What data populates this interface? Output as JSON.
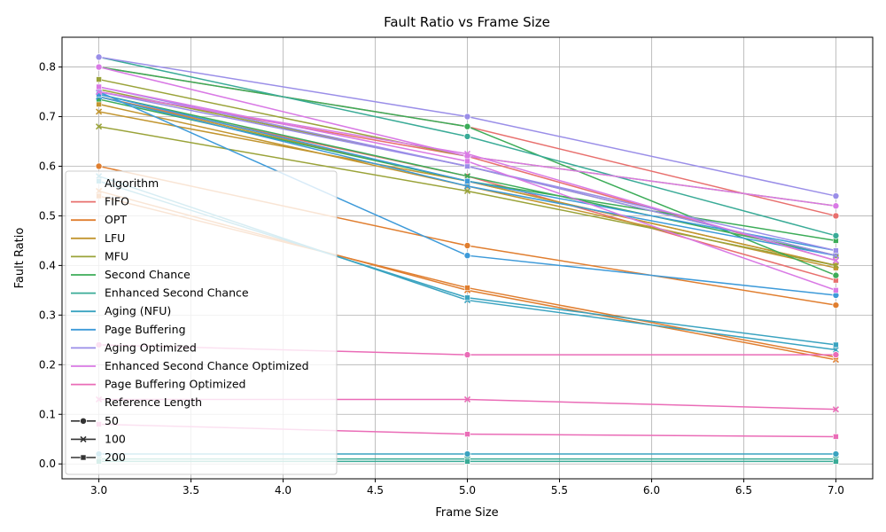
{
  "chart_data": {
    "type": "line",
    "title": "Fault Ratio vs Frame Size",
    "xlabel": "Frame Size",
    "ylabel": "Fault Ratio",
    "x": [
      3,
      5,
      7
    ],
    "xlim": [
      2.8,
      7.2
    ],
    "ylim": [
      -0.03,
      0.86
    ],
    "xticks": [
      "3.0",
      "3.5",
      "4.0",
      "4.5",
      "5.0",
      "5.5",
      "6.0",
      "6.5",
      "7.0"
    ],
    "yticks": [
      "0.0",
      "0.1",
      "0.2",
      "0.3",
      "0.4",
      "0.5",
      "0.6",
      "0.7",
      "0.8"
    ],
    "grid": true,
    "legend_position": "lower-left",
    "legend_hue_title": "Algorithm",
    "legend_style_title": "Reference Length",
    "styles": [
      {
        "label": "50",
        "marker": "circle"
      },
      {
        "label": "100",
        "marker": "x"
      },
      {
        "label": "200",
        "marker": "square"
      }
    ],
    "algorithms": [
      {
        "name": "FIFO",
        "color": "#e8706e",
        "values": {
          "50": [
            0.8,
            0.68,
            0.5
          ],
          "100": [
            0.75,
            0.62,
            0.41
          ],
          "200": [
            0.74,
            0.58,
            0.37
          ]
        }
      },
      {
        "name": "OPT",
        "color": "#e07e2f",
        "values": {
          "50": [
            0.6,
            0.44,
            0.32
          ],
          "100": [
            0.55,
            0.35,
            0.21
          ],
          "200": [
            0.54,
            0.355,
            0.215
          ]
        }
      },
      {
        "name": "LFU",
        "color": "#c2952f",
        "values": {
          "50": [
            0.74,
            0.57,
            0.4
          ],
          "100": [
            0.71,
            0.57,
            0.4
          ],
          "200": [
            0.725,
            0.56,
            0.395
          ]
        }
      },
      {
        "name": "MFU",
        "color": "#9aa339",
        "values": {
          "50": [
            0.755,
            0.6,
            0.42
          ],
          "100": [
            0.68,
            0.55,
            0.4
          ],
          "200": [
            0.775,
            0.62,
            0.52
          ]
        }
      },
      {
        "name": "Second Chance",
        "color": "#3cac58",
        "values": {
          "50": [
            0.8,
            0.68,
            0.38
          ],
          "100": [
            0.745,
            0.58,
            0.42
          ],
          "200": [
            0.735,
            0.57,
            0.45
          ]
        }
      },
      {
        "name": "Enhanced Second Chance",
        "color": "#3aab97",
        "values": {
          "50": [
            0.82,
            0.66,
            0.46
          ],
          "100": [
            0.01,
            0.01,
            0.01
          ],
          "200": [
            0.005,
            0.005,
            0.005
          ]
        }
      },
      {
        "name": "Aging (NFU)",
        "color": "#3aa3c0",
        "values": {
          "50": [
            0.02,
            0.02,
            0.02
          ],
          "100": [
            0.58,
            0.33,
            0.23
          ],
          "200": [
            0.57,
            0.335,
            0.24
          ]
        }
      },
      {
        "name": "Page Buffering",
        "color": "#3d9ad9",
        "values": {
          "50": [
            0.75,
            0.42,
            0.34
          ],
          "100": [
            0.74,
            0.56,
            0.42
          ],
          "200": [
            0.745,
            0.57,
            0.43
          ]
        }
      },
      {
        "name": "Aging Optimized",
        "color": "#9a8ee8",
        "values": {
          "50": [
            0.82,
            0.7,
            0.54
          ],
          "100": [
            0.75,
            0.6,
            0.42
          ],
          "200": [
            0.76,
            0.6,
            0.43
          ]
        }
      },
      {
        "name": "Enhanced Second Chance Optimized",
        "color": "#d97ae5",
        "values": {
          "50": [
            0.8,
            0.62,
            0.52
          ],
          "100": [
            0.75,
            0.625,
            0.41
          ],
          "200": [
            0.76,
            0.61,
            0.35
          ]
        }
      },
      {
        "name": "Page Buffering Optimized",
        "color": "#ea6cb7",
        "values": {
          "50": [
            0.24,
            0.22,
            0.22
          ],
          "100": [
            0.13,
            0.13,
            0.11
          ],
          "200": [
            0.08,
            0.06,
            0.055
          ]
        }
      }
    ]
  }
}
